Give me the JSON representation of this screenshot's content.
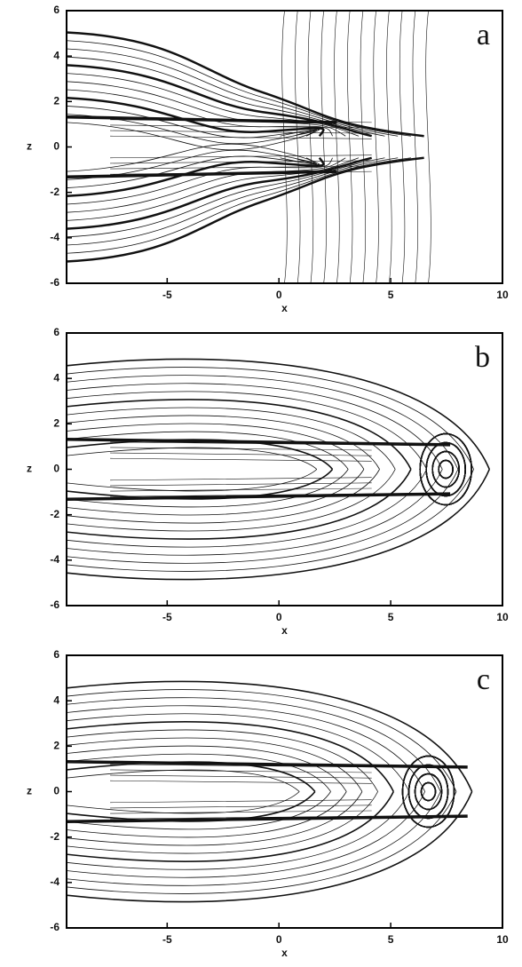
{
  "chart_data": [
    {
      "type": "contour",
      "label": "a",
      "xlabel": "x",
      "ylabel": "z",
      "xlim": [
        -9.5,
        10
      ],
      "ylim": [
        -6,
        6
      ],
      "xticks": [
        -5,
        0,
        5,
        10
      ],
      "yticks": [
        -6,
        -4,
        -2,
        0,
        2,
        4,
        6
      ]
    },
    {
      "type": "contour",
      "label": "b",
      "xlabel": "x",
      "ylabel": "z",
      "xlim": [
        -9.5,
        10
      ],
      "ylim": [
        -6,
        6
      ],
      "xticks": [
        -5,
        0,
        5,
        10
      ],
      "yticks": [
        -6,
        -4,
        -2,
        0,
        2,
        4,
        6
      ]
    },
    {
      "type": "contour",
      "label": "c",
      "xlabel": "x",
      "ylabel": "z",
      "xlim": [
        -9.5,
        10
      ],
      "ylim": [
        -6,
        6
      ],
      "xticks": [
        -5,
        0,
        5,
        10
      ],
      "yticks": [
        -6,
        -4,
        -2,
        0,
        2,
        4,
        6
      ]
    }
  ]
}
